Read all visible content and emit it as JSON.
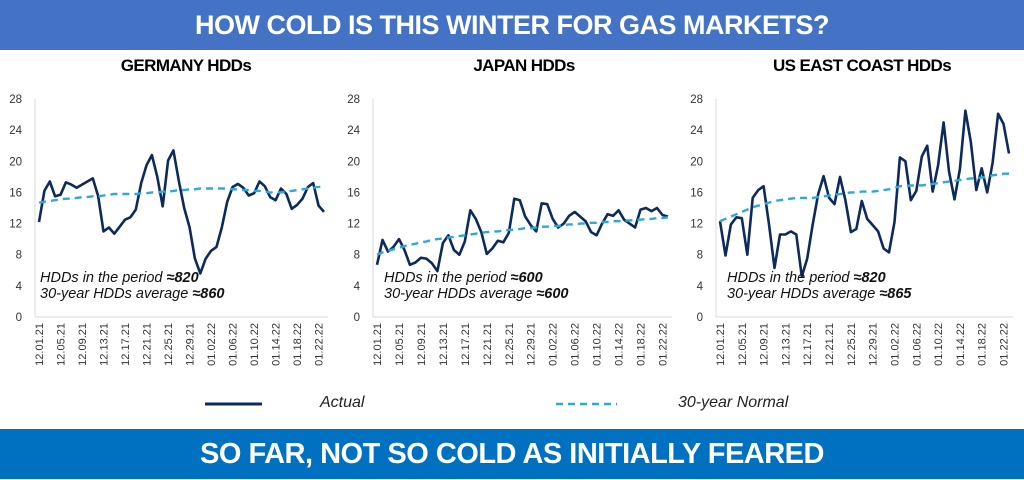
{
  "header": {
    "title": "HOW COLD IS THIS WINTER FOR GAS MARKETS?"
  },
  "footer": {
    "title": "SO FAR, NOT SO COLD AS INITIALLY FEARED"
  },
  "legend": {
    "actual": "Actual",
    "normal": "30-year Normal"
  },
  "colors": {
    "actual": "#0D2A5C",
    "normal": "#2FA8D8",
    "header": "#4472C4",
    "footer": "#0070C0"
  },
  "chart_data": [
    {
      "type": "line",
      "title": "GERMANY HDDs",
      "ylim": [
        0,
        28
      ],
      "yticks": [
        "0",
        "4",
        "8",
        "12",
        "16",
        "20",
        "24",
        "28"
      ],
      "x_tick_labels": [
        "12.01.21",
        "12.05.21",
        "12.09.21",
        "12.13.21",
        "12.17.21",
        "12.21.21",
        "12.25.21",
        "12.29.21",
        "01.02.22",
        "01.06.22",
        "01.10.22",
        "01.14.22",
        "01.18.22",
        "01.22.22"
      ],
      "x_tick_every": 4,
      "annotation": {
        "line1_prefix": "HDDs in the period ",
        "line1_value": "≈820",
        "line2_prefix": "30-year HDDs average ",
        "line2_value": "≈860"
      },
      "series": [
        {
          "name": "Actual",
          "values": [
            12.2,
            16.2,
            17.4,
            15.5,
            15.7,
            17.3,
            17.0,
            16.6,
            17.0,
            17.4,
            17.8,
            15.5,
            11.0,
            11.5,
            10.7,
            11.6,
            12.5,
            12.8,
            13.8,
            17.2,
            19.5,
            20.8,
            18.0,
            14.2,
            20.1,
            21.4,
            17.5,
            14.0,
            11.5,
            7.5,
            5.6,
            7.5,
            8.5,
            9.0,
            11.5,
            14.8,
            16.7,
            17.1,
            16.6,
            15.6,
            15.9,
            17.4,
            16.8,
            15.4,
            15.0,
            16.5,
            15.8,
            13.9,
            14.4,
            15.2,
            16.7,
            17.2,
            14.3,
            13.5
          ]
        },
        {
          "name": "30-year Normal",
          "values": [
            14.7,
            14.8,
            14.9,
            15.0,
            15.1,
            15.2,
            15.2,
            15.3,
            15.4,
            15.4,
            15.5,
            15.5,
            15.6,
            15.7,
            15.8,
            15.8,
            15.8,
            15.8,
            15.8,
            15.9,
            15.9,
            16.0,
            16.0,
            16.1,
            16.1,
            16.2,
            16.3,
            16.3,
            16.4,
            16.4,
            16.5,
            16.5,
            16.5,
            16.5,
            16.5,
            16.5,
            16.4,
            16.4,
            16.3,
            16.3,
            16.2,
            16.2,
            16.1,
            16.0,
            16.0,
            16.0,
            16.1,
            16.2,
            16.3,
            16.4,
            16.5,
            16.6,
            16.7,
            16.8
          ]
        }
      ]
    },
    {
      "type": "line",
      "title": "JAPAN HDDs",
      "ylim": [
        0,
        28
      ],
      "yticks": [
        "0",
        "4",
        "8",
        "12",
        "16",
        "20",
        "24",
        "28"
      ],
      "x_tick_labels": [
        "12.01.21",
        "12.05.21",
        "12.09.21",
        "12.13.21",
        "12.17.21",
        "12.21.21",
        "12.25.21",
        "12.29.21",
        "01.02.22",
        "01.06.22",
        "01.10.22",
        "01.14.22",
        "01.18.22",
        "01.22.22"
      ],
      "x_tick_every": 4,
      "annotation": {
        "line1_prefix": "HDDs in the period ",
        "line1_value": "≈600",
        "line2_prefix": "30-year HDDs average ",
        "line2_value": "≈600"
      },
      "series": [
        {
          "name": "Actual",
          "values": [
            6.7,
            9.9,
            8.4,
            9.0,
            10.0,
            8.6,
            6.7,
            7.0,
            7.6,
            7.5,
            6.9,
            5.9,
            9.5,
            10.5,
            8.6,
            8.0,
            9.7,
            13.7,
            12.6,
            10.9,
            8.1,
            8.8,
            9.8,
            9.6,
            10.8,
            15.2,
            15.0,
            12.9,
            11.8,
            11.0,
            14.6,
            14.5,
            12.6,
            11.5,
            12.0,
            13.0,
            13.5,
            12.9,
            12.3,
            10.9,
            10.5,
            12.0,
            13.2,
            13.0,
            13.7,
            12.5,
            12.0,
            11.5,
            13.8,
            14.0,
            13.6,
            14.0,
            13.1,
            12.9
          ]
        },
        {
          "name": "30-year Normal",
          "values": [
            8.0,
            8.3,
            8.5,
            8.7,
            8.9,
            9.1,
            9.3,
            9.4,
            9.6,
            9.7,
            9.9,
            10.0,
            10.1,
            10.2,
            10.3,
            10.4,
            10.5,
            10.6,
            10.7,
            10.8,
            10.9,
            11.0,
            11.0,
            11.1,
            11.2,
            11.2,
            11.3,
            11.4,
            11.4,
            11.5,
            11.6,
            11.6,
            11.7,
            11.7,
            11.8,
            11.9,
            11.9,
            12.0,
            12.0,
            12.1,
            12.1,
            12.2,
            12.2,
            12.3,
            12.3,
            12.4,
            12.4,
            12.5,
            12.5,
            12.6,
            12.6,
            12.7,
            12.7,
            12.8
          ]
        }
      ]
    },
    {
      "type": "line",
      "title": "US EAST COAST HDDs",
      "ylim": [
        0,
        28
      ],
      "yticks": [
        "0",
        "4",
        "8",
        "12",
        "16",
        "20",
        "24",
        "28"
      ],
      "x_tick_labels": [
        "12.01.21",
        "12.05.21",
        "12.09.21",
        "12.13.21",
        "12.17.21",
        "12.21.21",
        "12.25.21",
        "12.29.21",
        "01.02.22",
        "01.06.22",
        "01.10.22",
        "01.14.22",
        "01.18.22",
        "01.22.22"
      ],
      "x_tick_every": 4,
      "annotation": {
        "line1_prefix": "HDDs in the period ",
        "line1_value": "≈820",
        "line2_prefix": "30-year HDDs average ",
        "line2_value": "≈865"
      },
      "series": [
        {
          "name": "Actual",
          "values": [
            12.3,
            7.9,
            11.9,
            12.8,
            12.7,
            8.0,
            15.3,
            16.3,
            16.8,
            11.8,
            6.3,
            10.6,
            10.6,
            11.0,
            10.6,
            5.2,
            7.5,
            11.9,
            15.8,
            18.1,
            15.3,
            14.5,
            18.0,
            15.0,
            10.9,
            11.3,
            14.9,
            12.6,
            11.8,
            11.0,
            8.8,
            8.3,
            12.2,
            20.5,
            20.0,
            15.0,
            16.2,
            20.6,
            22.0,
            16.1,
            19.5,
            25.0,
            18.7,
            15.1,
            19.0,
            26.5,
            22.5,
            16.3,
            19.1,
            16.0,
            19.8,
            26.1,
            24.8,
            21.0
          ]
        },
        {
          "name": "30-year Normal",
          "values": [
            12.3,
            12.6,
            12.9,
            13.2,
            13.5,
            13.8,
            14.1,
            14.3,
            14.5,
            14.7,
            14.9,
            15.0,
            15.1,
            15.2,
            15.3,
            15.3,
            15.3,
            15.3,
            15.4,
            15.5,
            15.6,
            15.7,
            15.8,
            15.9,
            16.0,
            16.0,
            16.1,
            16.1,
            16.1,
            16.2,
            16.3,
            16.4,
            16.6,
            16.8,
            16.8,
            16.9,
            16.9,
            16.9,
            17.0,
            17.1,
            17.2,
            17.3,
            17.4,
            17.5,
            17.6,
            17.7,
            17.8,
            17.8,
            17.9,
            18.0,
            18.2,
            18.3,
            18.4,
            18.4
          ]
        }
      ]
    }
  ]
}
